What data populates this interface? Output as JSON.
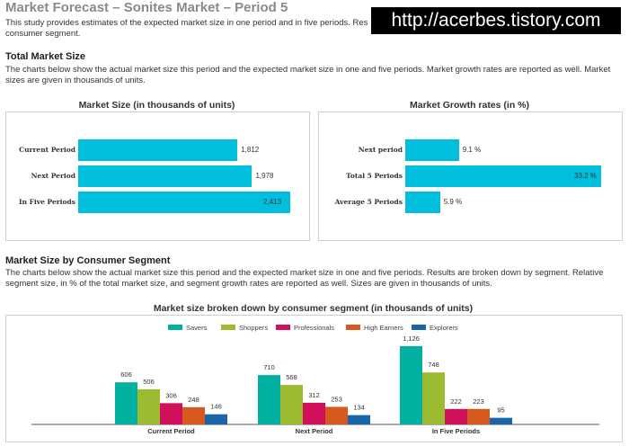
{
  "header": {
    "title": "Market Forecast – Sonites Market – Period 5",
    "intro_line1": "This study provides estimates of the expected market size in one period and in five periods. Res",
    "intro_line2": "consumer segment.",
    "watermark": "http://acerbes.tistory.com"
  },
  "total_section": {
    "heading": "Total Market Size",
    "desc_line1": "The charts below show the actual market size this period and the expected market size in one and five periods. Market growth rates are reported as well. Market",
    "desc_line2": "sizes are given in thousands of units."
  },
  "segment_section": {
    "heading": "Market Size by Consumer Segment",
    "desc_line1": "The charts below show the actual market size this period and the expected market size in one and five periods. Results are broken down by segment. Relative",
    "desc_line2": "segment size, in % of the total market size, and segment growth rates are reported as well. Sizes are given in thousands of units."
  },
  "chart_data": [
    {
      "type": "bar",
      "orientation": "horizontal",
      "title": "Market Size (in thousands of units)",
      "categories": [
        "Current Period",
        "Next Period",
        "In Five Periods"
      ],
      "values": [
        1812,
        1978,
        2413
      ],
      "value_labels": [
        "1,812",
        "1,978",
        "2,413"
      ],
      "color": "#00bfdc"
    },
    {
      "type": "bar",
      "orientation": "horizontal",
      "title": "Market Growth rates (in %)",
      "categories": [
        "Next period",
        "Total 5 Periods",
        "Average 5 Periods"
      ],
      "values": [
        9.1,
        33.2,
        5.9
      ],
      "value_labels": [
        "9.1 %",
        "33.2 %",
        "5.9 %"
      ],
      "color": "#00bfdc"
    },
    {
      "type": "bar",
      "orientation": "vertical",
      "title": "Market size broken down by consumer segment (in thousands of units)",
      "categories": [
        "Current Period",
        "Next Period",
        "In Five Periods"
      ],
      "legend_position": "top",
      "series": [
        {
          "name": "Savers",
          "color": "#00b0a0",
          "values": [
            606,
            710,
            1126
          ],
          "labels": [
            "606",
            "710",
            "1,126"
          ]
        },
        {
          "name": "Shoppers",
          "color": "#9cbb30",
          "values": [
            506,
            568,
            748
          ],
          "labels": [
            "506",
            "568",
            "748"
          ]
        },
        {
          "name": "Professionals",
          "color": "#d0105a",
          "values": [
            306,
            312,
            222
          ],
          "labels": [
            "306",
            "312",
            "222"
          ]
        },
        {
          "name": "High Earners",
          "color": "#d65a20",
          "values": [
            248,
            253,
            223
          ],
          "labels": [
            "248",
            "253",
            "223"
          ]
        },
        {
          "name": "Explorers",
          "color": "#1a64a8",
          "values": [
            146,
            134,
            95
          ],
          "labels": [
            "146",
            "134",
            "95"
          ]
        }
      ]
    }
  ]
}
